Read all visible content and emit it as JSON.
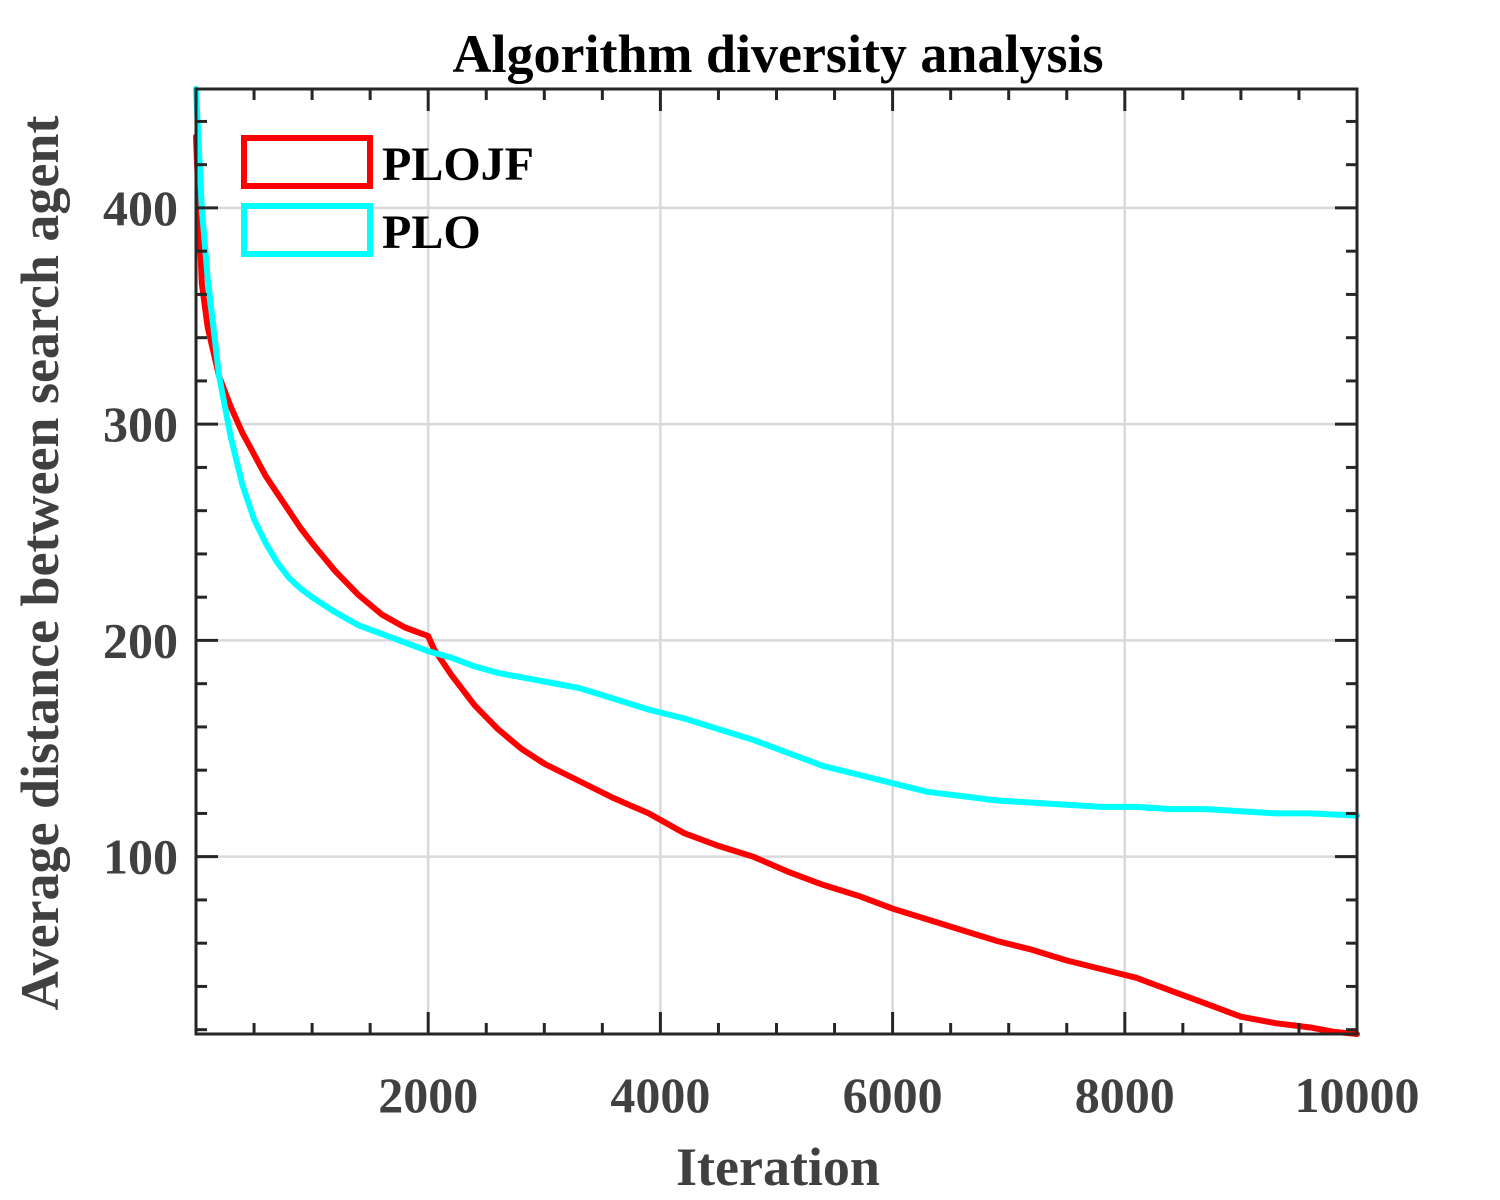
{
  "chart_data": {
    "type": "line",
    "title": "Algorithm diversity analysis",
    "xlabel": "Iteration",
    "ylabel": "Average distance between search agent",
    "xlim": [
      0,
      10000
    ],
    "ylim": [
      18,
      455
    ],
    "xticks": [
      2000,
      4000,
      6000,
      8000,
      10000
    ],
    "yticks": [
      100,
      200,
      300,
      400
    ],
    "xtick_labels": [
      "2000",
      "4000",
      "6000",
      "8000",
      "10000"
    ],
    "ytick_labels": [
      "100",
      "200",
      "300",
      "400"
    ],
    "grid": true,
    "legend_position": "top-left",
    "series": [
      {
        "name": "PLOJF",
        "color": "#ff0000",
        "x": [
          0,
          50,
          100,
          200,
          300,
          400,
          500,
          600,
          700,
          800,
          900,
          1000,
          1200,
          1400,
          1600,
          1800,
          2000,
          2050,
          2200,
          2400,
          2600,
          2800,
          3000,
          3300,
          3600,
          3900,
          4200,
          4500,
          4800,
          5100,
          5400,
          5700,
          6000,
          6300,
          6600,
          6900,
          7200,
          7500,
          7800,
          8100,
          8400,
          8700,
          9000,
          9300,
          9600,
          9800,
          10000
        ],
        "y": [
          433,
          365,
          345,
          322,
          308,
          296,
          286,
          276,
          268,
          260,
          252,
          245,
          232,
          221,
          212,
          206,
          202,
          196,
          184,
          170,
          159,
          150,
          143,
          135,
          127,
          120,
          111,
          105,
          100,
          93,
          87,
          82,
          76,
          71,
          66,
          61,
          57,
          52,
          48,
          44,
          38,
          32,
          26,
          23,
          21,
          19,
          18
        ]
      },
      {
        "name": "PLO",
        "color": "#00ffff",
        "x": [
          0,
          50,
          100,
          200,
          300,
          400,
          500,
          600,
          700,
          800,
          900,
          1000,
          1200,
          1400,
          1600,
          1800,
          2000,
          2200,
          2400,
          2600,
          2800,
          3000,
          3300,
          3600,
          3900,
          4200,
          4500,
          4800,
          5100,
          5400,
          5700,
          6000,
          6300,
          6600,
          6900,
          7200,
          7500,
          7800,
          8100,
          8400,
          8700,
          9000,
          9300,
          9600,
          10000
        ],
        "y": [
          455,
          400,
          368,
          322,
          294,
          272,
          256,
          245,
          236,
          229,
          224,
          220,
          213,
          207,
          203,
          199,
          195,
          192,
          188,
          185,
          183,
          181,
          178,
          173,
          168,
          164,
          159,
          154,
          148,
          142,
          138,
          134,
          130,
          128,
          126,
          125,
          124,
          123,
          123,
          122,
          122,
          121,
          120,
          120,
          119
        ]
      }
    ]
  }
}
